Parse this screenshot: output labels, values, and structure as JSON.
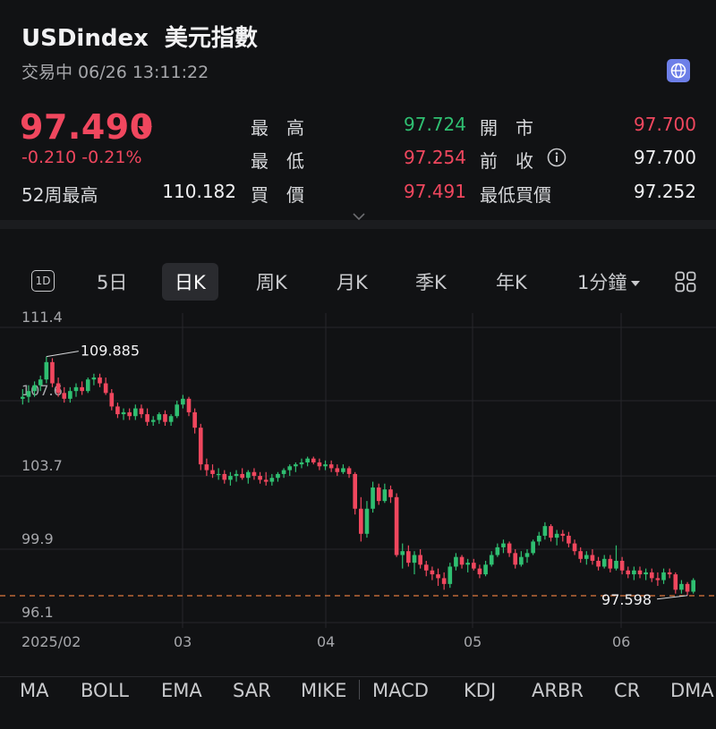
{
  "header": {
    "symbol": "USDindex",
    "name_cn": "美元指數",
    "status": "交易中 06/26 13:11:22",
    "price": "97.490",
    "change": "-0.210  -0.21%",
    "week52_label": "52周最高",
    "week52_value": "110.182"
  },
  "stats": {
    "high_label": "最　高",
    "high_value": "97.724",
    "open_label": "開　市",
    "open_value": "97.700",
    "low_label": "最　低",
    "low_value": "97.254",
    "prev_label": "前　收",
    "prev_value": "97.700",
    "bid_label": "買　價",
    "bid_value": "97.491",
    "lowbid_label": "最低買價",
    "lowbid_value": "97.252"
  },
  "colors": {
    "up": "#2fbf71",
    "down": "#f0475e",
    "background": "#111214"
  },
  "tabs": [
    "5日",
    "日K",
    "周K",
    "月K",
    "季K",
    "年K",
    "1分鐘"
  ],
  "tab_1d": "1D",
  "active_tab": "日K",
  "indicators": [
    "MA",
    "BOLL",
    "EMA",
    "SAR",
    "MIKE",
    "MACD",
    "KDJ",
    "ARBR",
    "CR",
    "DMA"
  ],
  "chart_data": {
    "type": "candlestick",
    "y_ticks": [
      "111.4",
      "107.6",
      "103.7",
      "99.9",
      "96.1"
    ],
    "ylim": [
      96.1,
      111.4
    ],
    "x_ticks": [
      "2025/02",
      "03",
      "04",
      "05",
      "06"
    ],
    "max_label": "109.885",
    "min_label": "97.598",
    "last_price_line": 97.49,
    "candles": [
      [
        107.7,
        108.2,
        107.4,
        107.8
      ],
      [
        107.8,
        108.4,
        107.5,
        108.1
      ],
      [
        108.1,
        108.6,
        107.8,
        108.4
      ],
      [
        108.4,
        108.9,
        108.1,
        108.7
      ],
      [
        108.7,
        109.885,
        108.5,
        109.6
      ],
      [
        109.6,
        109.8,
        108.3,
        108.5
      ],
      [
        108.5,
        108.8,
        107.8,
        108.0
      ],
      [
        108.0,
        108.3,
        107.5,
        107.7
      ],
      [
        107.7,
        108.3,
        107.5,
        108.1
      ],
      [
        108.1,
        108.5,
        107.8,
        108.3
      ],
      [
        108.3,
        108.6,
        107.9,
        108.1
      ],
      [
        108.1,
        108.8,
        108.0,
        108.7
      ],
      [
        108.7,
        109.0,
        108.4,
        108.8
      ],
      [
        108.8,
        109.0,
        108.3,
        108.5
      ],
      [
        108.5,
        108.8,
        107.9,
        108.0
      ],
      [
        108.0,
        108.2,
        107.1,
        107.3
      ],
      [
        107.3,
        107.5,
        106.7,
        106.9
      ],
      [
        106.9,
        107.2,
        106.6,
        107.0
      ],
      [
        107.0,
        107.2,
        106.6,
        106.8
      ],
      [
        106.8,
        107.4,
        106.6,
        107.2
      ],
      [
        107.2,
        107.4,
        106.7,
        106.9
      ],
      [
        106.9,
        107.2,
        106.3,
        106.5
      ],
      [
        106.5,
        106.8,
        106.3,
        106.6
      ],
      [
        106.6,
        107.0,
        106.4,
        106.9
      ],
      [
        106.9,
        107.1,
        106.3,
        106.5
      ],
      [
        106.5,
        106.9,
        106.3,
        106.8
      ],
      [
        106.8,
        107.6,
        106.7,
        107.4
      ],
      [
        107.4,
        107.9,
        107.2,
        107.7
      ],
      [
        107.7,
        107.8,
        106.8,
        107.0
      ],
      [
        107.0,
        107.2,
        105.9,
        106.2
      ],
      [
        106.2,
        106.4,
        104.0,
        104.3
      ],
      [
        104.3,
        104.6,
        103.7,
        104.0
      ],
      [
        104.0,
        104.3,
        103.6,
        103.8
      ],
      [
        103.8,
        104.1,
        103.5,
        103.8
      ],
      [
        103.8,
        104.0,
        103.3,
        103.5
      ],
      [
        103.5,
        103.9,
        103.2,
        103.7
      ],
      [
        103.7,
        104.0,
        103.4,
        103.8
      ],
      [
        103.8,
        104.1,
        103.5,
        103.6
      ],
      [
        103.6,
        104.0,
        103.3,
        103.9
      ],
      [
        103.9,
        104.1,
        103.5,
        103.7
      ],
      [
        103.7,
        103.9,
        103.3,
        103.5
      ],
      [
        103.5,
        103.9,
        103.2,
        103.4
      ],
      [
        103.4,
        103.8,
        103.2,
        103.6
      ],
      [
        103.6,
        103.9,
        103.4,
        103.8
      ],
      [
        103.8,
        104.1,
        103.6,
        104.0
      ],
      [
        104.0,
        104.3,
        103.7,
        104.2
      ],
      [
        104.2,
        104.4,
        103.9,
        104.3
      ],
      [
        104.3,
        104.6,
        104.1,
        104.4
      ],
      [
        104.4,
        104.7,
        104.2,
        104.6
      ],
      [
        104.6,
        104.7,
        104.3,
        104.4
      ],
      [
        104.4,
        104.6,
        104.0,
        104.2
      ],
      [
        104.2,
        104.5,
        104.0,
        104.3
      ],
      [
        104.3,
        104.5,
        103.9,
        104.1
      ],
      [
        104.1,
        104.3,
        103.7,
        103.9
      ],
      [
        103.9,
        104.3,
        103.8,
        104.1
      ],
      [
        104.1,
        104.2,
        103.6,
        103.8
      ],
      [
        103.8,
        103.9,
        101.7,
        102.0
      ],
      [
        102.0,
        102.6,
        100.3,
        100.7
      ],
      [
        100.7,
        102.4,
        100.5,
        102.0
      ],
      [
        102.0,
        103.4,
        101.8,
        103.1
      ],
      [
        103.1,
        103.3,
        102.2,
        102.4
      ],
      [
        102.4,
        103.3,
        102.3,
        103.0
      ],
      [
        103.0,
        103.2,
        102.3,
        102.6
      ],
      [
        102.6,
        102.8,
        99.5,
        99.6
      ],
      [
        99.6,
        100.2,
        98.9,
        99.8
      ],
      [
        99.8,
        100.1,
        99.0,
        99.2
      ],
      [
        99.2,
        99.8,
        98.6,
        99.6
      ],
      [
        99.6,
        99.9,
        98.9,
        99.1
      ],
      [
        99.1,
        99.3,
        98.5,
        98.8
      ],
      [
        98.8,
        99.0,
        98.3,
        98.6
      ],
      [
        98.6,
        98.9,
        98.0,
        98.4
      ],
      [
        98.4,
        98.7,
        97.8,
        98.1
      ],
      [
        98.1,
        99.2,
        97.9,
        99.0
      ],
      [
        99.0,
        99.7,
        98.8,
        99.5
      ],
      [
        99.5,
        99.6,
        98.9,
        99.1
      ],
      [
        99.1,
        99.4,
        98.7,
        99.2
      ],
      [
        99.2,
        99.4,
        98.8,
        98.9
      ],
      [
        98.9,
        99.1,
        98.4,
        98.6
      ],
      [
        98.6,
        99.3,
        98.5,
        99.1
      ],
      [
        99.1,
        99.8,
        99.0,
        99.6
      ],
      [
        99.6,
        100.2,
        99.5,
        100.0
      ],
      [
        100.0,
        100.4,
        99.7,
        100.2
      ],
      [
        100.2,
        100.3,
        99.5,
        99.7
      ],
      [
        99.7,
        99.9,
        98.9,
        99.1
      ],
      [
        99.1,
        99.8,
        99.0,
        99.5
      ],
      [
        99.5,
        99.9,
        99.2,
        99.7
      ],
      [
        99.7,
        100.4,
        99.6,
        100.3
      ],
      [
        100.3,
        100.8,
        100.1,
        100.6
      ],
      [
        100.6,
        101.3,
        100.4,
        101.1
      ],
      [
        101.1,
        101.2,
        100.3,
        100.5
      ],
      [
        100.5,
        100.9,
        100.1,
        100.7
      ],
      [
        100.7,
        100.9,
        100.3,
        100.6
      ],
      [
        100.6,
        100.8,
        100.0,
        100.2
      ],
      [
        100.2,
        100.4,
        99.6,
        99.8
      ],
      [
        99.8,
        100.0,
        99.2,
        99.4
      ],
      [
        99.4,
        99.8,
        99.1,
        99.6
      ],
      [
        99.6,
        99.9,
        99.1,
        99.3
      ],
      [
        99.3,
        99.5,
        98.8,
        99.0
      ],
      [
        99.0,
        99.6,
        98.9,
        99.4
      ],
      [
        99.4,
        99.6,
        98.7,
        98.9
      ],
      [
        98.9,
        100.1,
        98.8,
        99.3
      ],
      [
        99.3,
        99.5,
        98.6,
        98.8
      ],
      [
        98.8,
        99.0,
        98.4,
        98.6
      ],
      [
        98.6,
        99.0,
        98.3,
        98.8
      ],
      [
        98.8,
        99.0,
        98.4,
        98.6
      ],
      [
        98.6,
        98.9,
        98.3,
        98.7
      ],
      [
        98.7,
        98.9,
        98.2,
        98.4
      ],
      [
        98.4,
        98.7,
        98.0,
        98.3
      ],
      [
        98.3,
        98.9,
        98.1,
        98.7
      ],
      [
        98.7,
        98.9,
        98.4,
        98.6
      ],
      [
        98.6,
        98.7,
        97.6,
        97.8
      ],
      [
        97.8,
        98.3,
        97.6,
        98.1
      ],
      [
        98.1,
        98.2,
        97.5,
        97.7
      ],
      [
        97.7,
        98.4,
        97.6,
        98.3
      ]
    ]
  }
}
